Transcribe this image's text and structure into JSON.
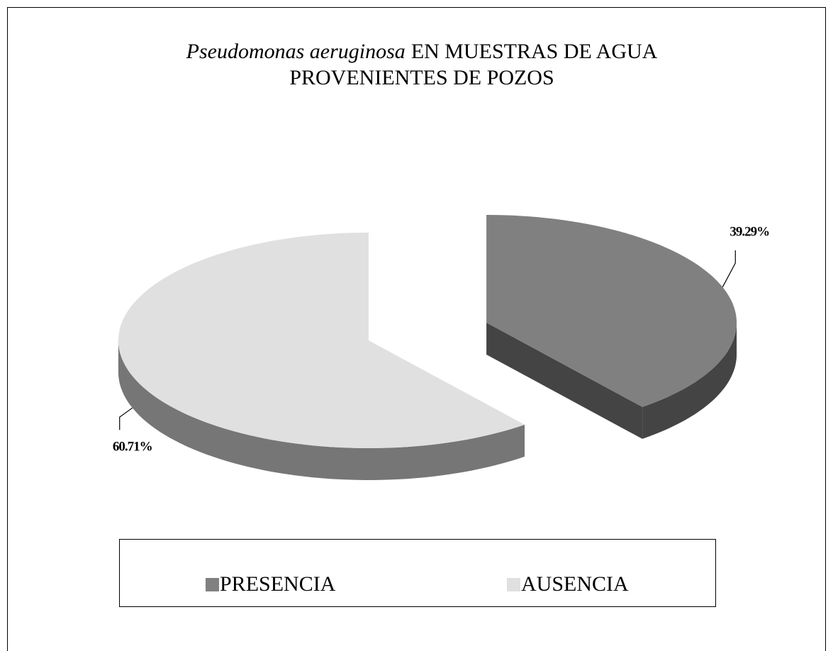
{
  "chart_data": {
    "type": "pie3d",
    "title": [
      "Pseudomonas aeruginosa",
      "EN MUESTRAS DE AGUA",
      "PROVENIENTES DE POZOS"
    ],
    "categories": [
      "PRESENCIA",
      "AUSENCIA"
    ],
    "values": [
      39.29,
      60.71
    ],
    "value_labels": [
      "39.29%",
      "60.71%"
    ],
    "colors": [
      "#808080",
      "#e0e0e0"
    ],
    "side_colors": [
      "#444444",
      "#767676"
    ],
    "legend": "bottom"
  }
}
